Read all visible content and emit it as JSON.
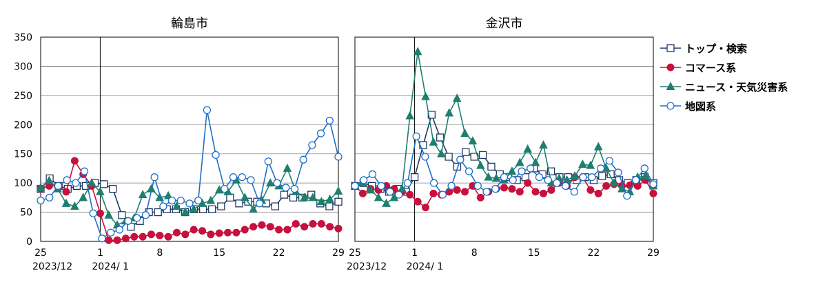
{
  "chart_data": [
    {
      "type": "line",
      "title": "輪島市",
      "x_ticks": [
        {
          "day": 25,
          "label": "25"
        },
        {
          "day": 32,
          "label": "1"
        },
        {
          "day": 39,
          "label": "8"
        },
        {
          "day": 46,
          "label": "15"
        },
        {
          "day": 53,
          "label": "22"
        },
        {
          "day": 60,
          "label": "29"
        }
      ],
      "period_labels": [
        {
          "day": 25,
          "label": "2023/12"
        },
        {
          "day": 32,
          "label": "2024/ 1"
        }
      ],
      "marker_line_day": 32,
      "ylim": [
        0,
        350
      ],
      "yticks": [
        0,
        50,
        100,
        150,
        200,
        250,
        300,
        350
      ],
      "xlim": [
        25,
        60
      ],
      "series": [
        {
          "name": "トップ・検索",
          "values": [
            90,
            108,
            95,
            90,
            95,
            95,
            100,
            98,
            90,
            45,
            25,
            35,
            50,
            50,
            55,
            55,
            50,
            55,
            55,
            55,
            60,
            75,
            65,
            68,
            68,
            65,
            60,
            80,
            75,
            75,
            80,
            65,
            60,
            68
          ]
        },
        {
          "name": "コマース系",
          "values": [
            90,
            95,
            95,
            85,
            138,
            115,
            95,
            48,
            2,
            2,
            5,
            8,
            8,
            12,
            10,
            8,
            15,
            12,
            20,
            18,
            12,
            14,
            15,
            15,
            20,
            25,
            28,
            25,
            20,
            20,
            30,
            25,
            30,
            30,
            25,
            22
          ]
        },
        {
          "name": "ニュース・天気災害系",
          "values": [
            92,
            104,
            90,
            65,
            60,
            75,
            100,
            85,
            45,
            28,
            35,
            40,
            80,
            90,
            75,
            78,
            60,
            50,
            55,
            65,
            70,
            88,
            85,
            105,
            75,
            55,
            70,
            100,
            95,
            125,
            85,
            75,
            75,
            68,
            72,
            86
          ]
        },
        {
          "name": "地図系",
          "values": [
            70,
            75,
            95,
            105,
            100,
            120,
            48,
            5,
            15,
            20,
            35,
            40,
            45,
            110,
            60,
            70,
            70,
            65,
            70,
            225,
            148,
            90,
            110,
            110,
            105,
            65,
            137,
            100,
            92,
            90,
            140,
            165,
            185,
            207,
            145
          ]
        }
      ]
    },
    {
      "type": "line",
      "title": "金沢市",
      "x_ticks": [
        {
          "day": 25,
          "label": "25"
        },
        {
          "day": 32,
          "label": "1"
        },
        {
          "day": 39,
          "label": "8"
        },
        {
          "day": 46,
          "label": "15"
        },
        {
          "day": 53,
          "label": "22"
        },
        {
          "day": 60,
          "label": "29"
        }
      ],
      "period_labels": [
        {
          "day": 25,
          "label": "2023/12"
        },
        {
          "day": 32,
          "label": "2024/ 1"
        }
      ],
      "marker_line_day": 32,
      "ylim": [
        0,
        350
      ],
      "yticks": [
        0,
        50,
        100,
        150,
        200,
        250,
        300,
        350
      ],
      "xlim": [
        25,
        60
      ],
      "series": [
        {
          "name": "トップ・検索",
          "values": [
            95,
            100,
            95,
            90,
            85,
            90,
            85,
            110,
            165,
            217,
            178,
            145,
            128,
            153,
            145,
            148,
            128,
            115,
            110,
            105,
            110,
            125,
            115,
            120,
            110,
            110,
            105,
            110,
            105,
            112,
            115,
            105,
            100,
            105,
            110,
            100
          ]
        },
        {
          "name": "コマース系",
          "values": [
            95,
            82,
            90,
            88,
            95,
            90,
            85,
            80,
            68,
            58,
            82,
            80,
            85,
            88,
            85,
            95,
            75,
            85,
            90,
            92,
            90,
            85,
            100,
            85,
            82,
            88,
            100,
            95,
            110,
            110,
            88,
            82,
            95,
            98,
            95,
            96,
            95,
            105,
            82
          ]
        },
        {
          "name": "ニュース・天気災害系",
          "values": [
            95,
            100,
            88,
            75,
            65,
            75,
            90,
            215,
            325,
            248,
            170,
            150,
            220,
            245,
            185,
            172,
            130,
            110,
            108,
            105,
            120,
            135,
            158,
            135,
            165,
            100,
            108,
            105,
            112,
            132,
            130,
            162,
            125,
            100,
            90,
            85,
            110,
            112,
            95
          ]
        },
        {
          "name": "地図系",
          "values": [
            95,
            105,
            115,
            95,
            85,
            80,
            100,
            180,
            145,
            100,
            80,
            95,
            140,
            120,
            95,
            85,
            90,
            110,
            105,
            120,
            125,
            110,
            105,
            100,
            95,
            85,
            110,
            110,
            125,
            138,
            118,
            78,
            105,
            125,
            98
          ]
        }
      ]
    }
  ],
  "legend": [
    {
      "label": "トップ・検索",
      "color": "#1f3864",
      "marker": "square-open"
    },
    {
      "label": "コマース系",
      "color": "#c8103e",
      "marker": "circle-filled"
    },
    {
      "label": "ニュース・天気災害系",
      "color": "#1e7f6e",
      "marker": "triangle-filled"
    },
    {
      "label": "地図系",
      "color": "#1e6fc8",
      "marker": "circle-open"
    }
  ],
  "colors": {
    "grid": "#808080",
    "axis": "#000000"
  }
}
